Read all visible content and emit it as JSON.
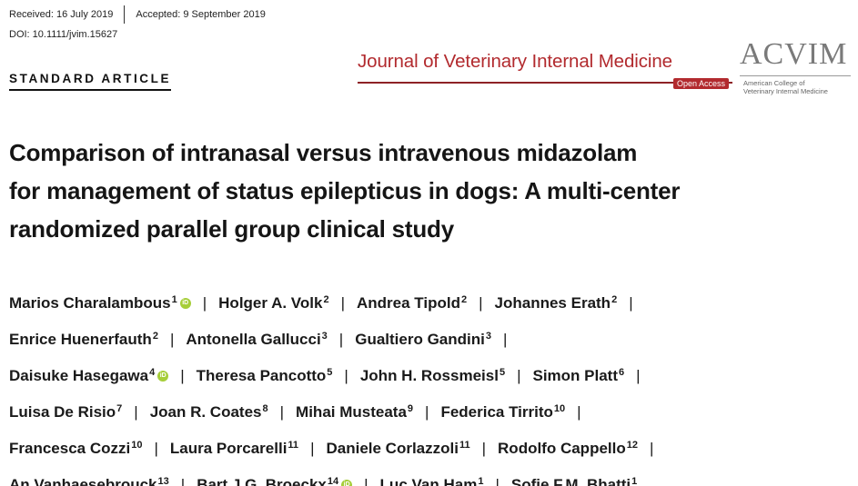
{
  "header": {
    "received": "Received: 16 July 2019",
    "accepted": "Accepted: 9 September 2019",
    "doi": "DOI: 10.1111/jvim.15627",
    "article_type": "STANDARD ARTICLE"
  },
  "journal": {
    "name": "Journal of Veterinary Internal Medicine",
    "badge": "Open Access",
    "logo_text": "ACVIM",
    "logo_sub_1": "American College of",
    "logo_sub_2": "Veterinary Internal Medicine",
    "accent_color": "#b22a2e"
  },
  "title_lines": [
    "Comparison of intranasal versus intravenous midazolam",
    "for management of status epilepticus in dogs: A multi-center",
    "randomized parallel group clinical study"
  ],
  "author_lines": [
    [
      {
        "name": "Marios Charalambous",
        "sup": "1",
        "orcid": true
      },
      {
        "name": "Holger A. Volk",
        "sup": "2"
      },
      {
        "name": "Andrea Tipold",
        "sup": "2"
      },
      {
        "name": "Johannes Erath",
        "sup": "2",
        "trailing_bar": true
      }
    ],
    [
      {
        "name": "Enrice Huenerfauth",
        "sup": "2"
      },
      {
        "name": "Antonella Gallucci",
        "sup": "3"
      },
      {
        "name": "Gualtiero Gandini",
        "sup": "3",
        "trailing_bar": true
      }
    ],
    [
      {
        "name": "Daisuke Hasegawa",
        "sup": "4",
        "orcid": true
      },
      {
        "name": "Theresa Pancotto",
        "sup": "5"
      },
      {
        "name": "John H. Rossmeisl",
        "sup": "5"
      },
      {
        "name": "Simon Platt",
        "sup": "6",
        "trailing_bar": true
      }
    ],
    [
      {
        "name": "Luisa De Risio",
        "sup": "7"
      },
      {
        "name": "Joan R. Coates",
        "sup": "8"
      },
      {
        "name": "Mihai Musteata",
        "sup": "9"
      },
      {
        "name": "Federica Tirrito",
        "sup": "10",
        "trailing_bar": true
      }
    ],
    [
      {
        "name": "Francesca Cozzi",
        "sup": "10"
      },
      {
        "name": "Laura Porcarelli",
        "sup": "11"
      },
      {
        "name": "Daniele Corlazzoli",
        "sup": "11"
      },
      {
        "name": "Rodolfo Cappello",
        "sup": "12",
        "trailing_bar": true
      }
    ],
    [
      {
        "name": "An Vanhaesebrouck",
        "sup": "13"
      },
      {
        "name": "Bart J.G. Broeckx",
        "sup": "14",
        "orcid": true
      },
      {
        "name": "Luc Van Ham",
        "sup": "1"
      },
      {
        "name": "Sofie F.M. Bhatti",
        "sup": "1"
      }
    ]
  ],
  "orcid_label": "iD",
  "orcid_color": "#a6ce39",
  "separator": "|"
}
